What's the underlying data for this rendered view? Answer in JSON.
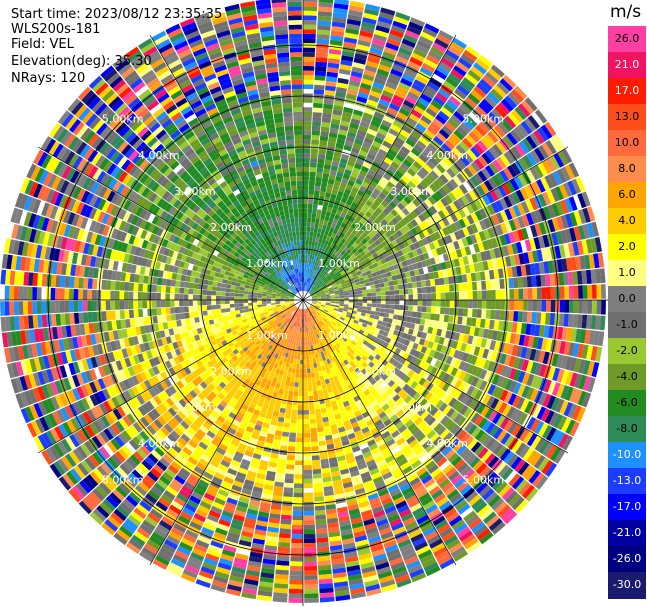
{
  "header": {
    "start_time": "Start time: 2023/08/12 23:35:35",
    "instrument": "WLS200s-181",
    "field": "Field: VEL",
    "elevation": "Elevation(deg): 35.30",
    "nrays": "NRays: 120"
  },
  "colorbar": {
    "title": "m/s",
    "bins": [
      {
        "label": "26.0",
        "color": "#ff3fa3"
      },
      {
        "label": "21.0",
        "color": "#f01460"
      },
      {
        "label": "17.0",
        "color": "#ff1a00"
      },
      {
        "label": "13.0",
        "color": "#ff4e1a"
      },
      {
        "label": "10.0",
        "color": "#ff6a3c"
      },
      {
        "label": "8.0",
        "color": "#ff8c4a"
      },
      {
        "label": "6.0",
        "color": "#ffa400"
      },
      {
        "label": "4.0",
        "color": "#ffcc00"
      },
      {
        "label": "2.0",
        "color": "#ffff00"
      },
      {
        "label": "1.0",
        "color": "#ffff80"
      },
      {
        "label": "0.0",
        "color": "#7f7f7f"
      },
      {
        "label": "-1.0",
        "color": "#707070"
      },
      {
        "label": "-2.0",
        "color": "#9ac832"
      },
      {
        "label": "-4.0",
        "color": "#6e9b28"
      },
      {
        "label": "-6.0",
        "color": "#228b22"
      },
      {
        "label": "-8.0",
        "color": "#2e8b57"
      },
      {
        "label": "-10.0",
        "color": "#1e90ff"
      },
      {
        "label": "-13.0",
        "color": "#1c3cff"
      },
      {
        "label": "-17.0",
        "color": "#0000ff"
      },
      {
        "label": "-21.0",
        "color": "#0000a0"
      },
      {
        "label": "-26.0",
        "color": "#000080"
      },
      {
        "label": "-30.0",
        "color": "#1a1a6e"
      }
    ]
  },
  "chart_data": {
    "type": "heatmap",
    "projection": "polar PPI (azimuth × range)",
    "field": "VEL",
    "units": "m/s",
    "n_rays": 120,
    "elevation_deg": 35.3,
    "range_rings_km": [
      1.0,
      2.0,
      3.0,
      4.0,
      5.0
    ],
    "ring_labels": [
      "1.00km",
      "2.00km",
      "3.00km",
      "4.00km",
      "5.00km"
    ],
    "max_range_km": 6.0,
    "spokes_deg": [
      0,
      30,
      60,
      90,
      120,
      150,
      180,
      210,
      240,
      270,
      300,
      330
    ],
    "pattern": [
      {
        "azimuth_center_deg": 0,
        "range_km": [
          0.3,
          2.8
        ],
        "approx_velocity_ms": -10.0
      },
      {
        "azimuth_center_deg": 0,
        "range_km": [
          2.8,
          6.0
        ],
        "approx_velocity_ms": -4.0
      },
      {
        "azimuth_center_deg": 90,
        "range_km": [
          0.5,
          6.0
        ],
        "approx_velocity_ms": -4.0
      },
      {
        "azimuth_center_deg": 180,
        "range_km": [
          0.3,
          2.5
        ],
        "approx_velocity_ms": 13.0
      },
      {
        "azimuth_center_deg": 180,
        "range_km": [
          2.5,
          6.0
        ],
        "approx_velocity_ms": 4.0
      },
      {
        "azimuth_center_deg": 270,
        "range_km": [
          0.5,
          6.0
        ],
        "approx_velocity_ms": 4.0
      }
    ]
  }
}
